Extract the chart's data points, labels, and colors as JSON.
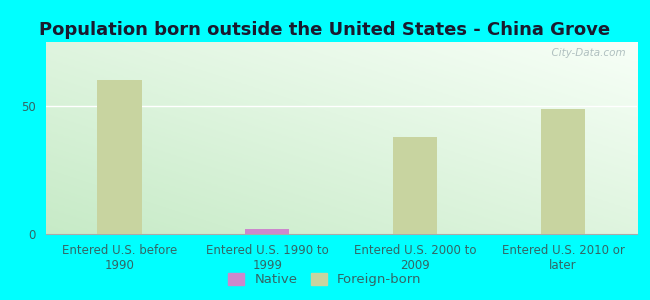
{
  "title": "Population born outside the United States - China Grove",
  "categories": [
    "Entered U.S. before\n1990",
    "Entered U.S. 1990 to\n1999",
    "Entered U.S. 2000 to\n2009",
    "Entered U.S. 2010 or\nlater"
  ],
  "native_values": [
    0,
    2,
    0,
    0
  ],
  "foreign_born_values": [
    60,
    0,
    38,
    49
  ],
  "native_color": "#cc88cc",
  "foreign_born_color": "#c8d4a0",
  "bar_width": 0.3,
  "ylim": [
    0,
    75
  ],
  "yticks": [
    0,
    50
  ],
  "background_color": "#00ffff",
  "watermark": "  City-Data.com",
  "title_fontsize": 13,
  "tick_label_fontsize": 8.5,
  "legend_fontsize": 9.5,
  "axis_label_color": "#336666"
}
